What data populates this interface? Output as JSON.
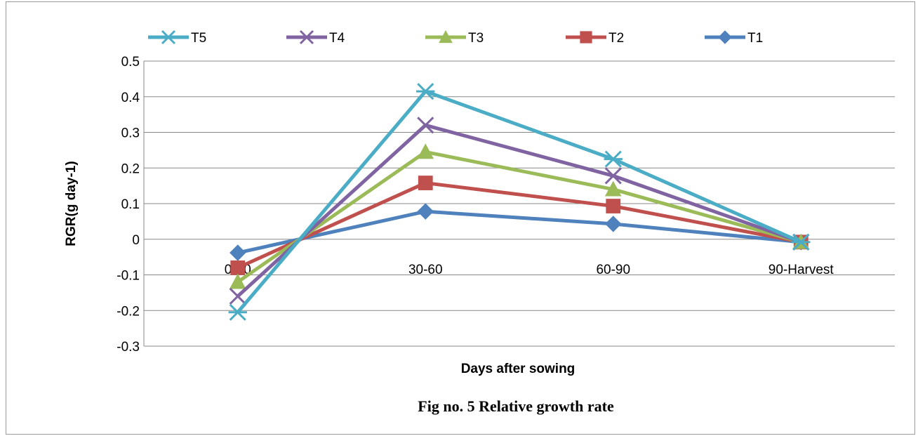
{
  "chart_data": {
    "type": "line",
    "categories": [
      "0-30",
      "30-60",
      "60-90",
      "90-Harvest"
    ],
    "series": [
      {
        "name": "T5",
        "color": "#4BACC6",
        "marker": "asterisk",
        "values": [
          -0.205,
          0.415,
          0.225,
          -0.008
        ]
      },
      {
        "name": "T4",
        "color": "#8064A2",
        "marker": "x",
        "values": [
          -0.16,
          0.32,
          0.178,
          -0.008
        ]
      },
      {
        "name": "T3",
        "color": "#9BBB59",
        "marker": "triangle",
        "values": [
          -0.12,
          0.245,
          0.14,
          -0.008
        ]
      },
      {
        "name": "T2",
        "color": "#C0504D",
        "marker": "square",
        "values": [
          -0.08,
          0.158,
          0.093,
          -0.008
        ]
      },
      {
        "name": "T1",
        "color": "#4F81BD",
        "marker": "diamond",
        "values": [
          -0.038,
          0.078,
          0.043,
          -0.008
        ]
      }
    ],
    "xlabel": "Days after sowing",
    "ylabel": "RGR(g  day-1)",
    "ylim": [
      -0.3,
      0.5
    ],
    "yticks": [
      "0.5",
      "0.4",
      "0.3",
      "0.2",
      "0.1",
      "0",
      "-0.1",
      "-0.2",
      "-0.3"
    ],
    "grid": true,
    "legend": "top"
  },
  "caption": "Fig no. 5 Relative  growth rate"
}
